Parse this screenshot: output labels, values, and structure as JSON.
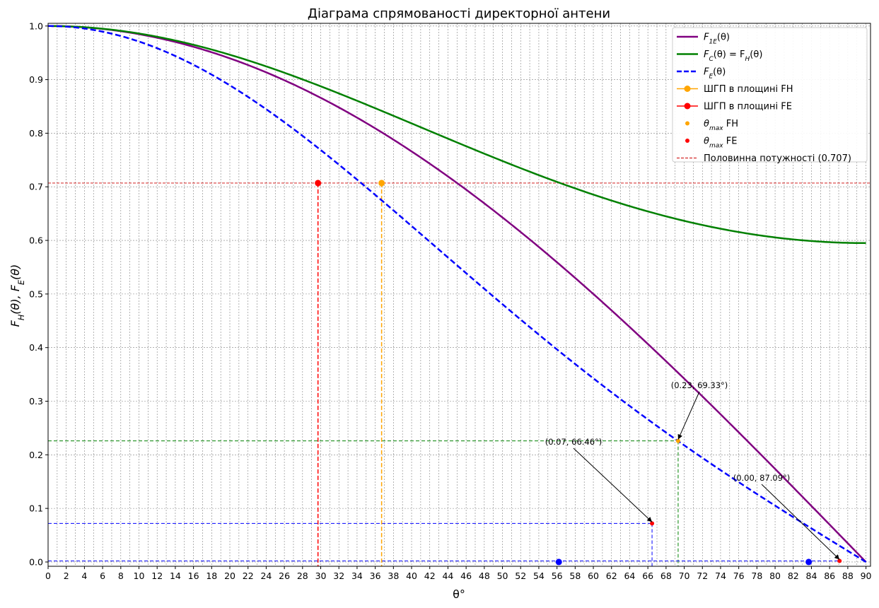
{
  "chart_data": {
    "type": "line",
    "title": "Діаграма спрямованості директорної антени",
    "xlabel": "θ°",
    "ylabel_parts": [
      "F",
      "H",
      "(θ), F",
      "E",
      "(θ)"
    ],
    "xlim": [
      0,
      90.5
    ],
    "ylim": [
      -0.008,
      1.005
    ],
    "x_ticks": [
      0,
      2,
      4,
      6,
      8,
      10,
      12,
      14,
      16,
      18,
      20,
      22,
      24,
      26,
      28,
      30,
      32,
      34,
      36,
      38,
      40,
      42,
      44,
      46,
      48,
      50,
      52,
      54,
      56,
      58,
      60,
      62,
      64,
      66,
      68,
      70,
      72,
      74,
      76,
      78,
      80,
      82,
      84,
      86,
      88,
      90
    ],
    "y_ticks": [
      "0.0",
      "0.1",
      "0.2",
      "0.3",
      "0.4",
      "0.5",
      "0.6",
      "0.7",
      "0.8",
      "0.9",
      "1.0"
    ],
    "grid": true,
    "legend_placement": "top-right",
    "colors": {
      "f1e": "#800080",
      "fh": "#008000",
      "fe": "#0000ff",
      "hpbw_fh": "#ffa500",
      "hpbw_fe": "#ff0000",
      "half_power": "#cc0000",
      "grid": "#808080",
      "annotation": "#000000"
    },
    "series": [
      {
        "id": "f1e",
        "style": "solid",
        "function": "cos(theta)"
      },
      {
        "id": "fh",
        "style": "solid",
        "function": "|sin(1.672 sin θ)/(1.672 sin θ)|"
      },
      {
        "id": "fe",
        "style": "dashed",
        "function": "|sin(1.672 sin θ)/(1.672 sin θ)| · cos θ"
      }
    ],
    "hpbw": {
      "fh": {
        "theta": 36.7,
        "value": 0.707
      },
      "fe": {
        "theta": 29.7,
        "value": 0.707
      }
    },
    "half_power_level": 0.707,
    "nulls": [
      {
        "theta": 56.2,
        "value": 0.0
      },
      {
        "theta": 83.7,
        "value": 0.0
      }
    ],
    "maxima": [
      {
        "theta": 69.33,
        "value": 0.226,
        "series": "fh",
        "label": "(0.23, 69.33°)"
      },
      {
        "theta": 66.46,
        "value": 0.072,
        "series": "fe",
        "label": "(0.07, 66.46°)"
      },
      {
        "theta": 87.09,
        "value": 0.002,
        "series": "fe",
        "label": "(0.00, 87.09°)"
      }
    ],
    "legend": [
      {
        "id": "f1e",
        "label_math": [
          "F",
          "1E",
          "(θ)"
        ],
        "kind": "line"
      },
      {
        "id": "fh",
        "label_math": [
          "F",
          "C",
          "(θ) = F",
          "H",
          "(θ)"
        ],
        "kind": "line"
      },
      {
        "id": "fe",
        "label_math": [
          "F",
          "E",
          "(θ)"
        ],
        "kind": "dashed"
      },
      {
        "id": "hpbw_fh",
        "label": "ШГП в площині FH",
        "kind": "line-marker"
      },
      {
        "id": "hpbw_fe",
        "label": "ШГП в площині FE",
        "kind": "line-marker"
      },
      {
        "id": "tmax_fh",
        "label_math": [
          "θ",
          "max",
          " FH"
        ],
        "kind": "marker",
        "color": "#ffa500"
      },
      {
        "id": "tmax_fe",
        "label_math": [
          "θ",
          "max",
          " FE"
        ],
        "kind": "marker",
        "color": "#ff0000"
      },
      {
        "id": "half",
        "label": "Половинна потужності (0.707)",
        "kind": "thin-dashed"
      }
    ]
  }
}
